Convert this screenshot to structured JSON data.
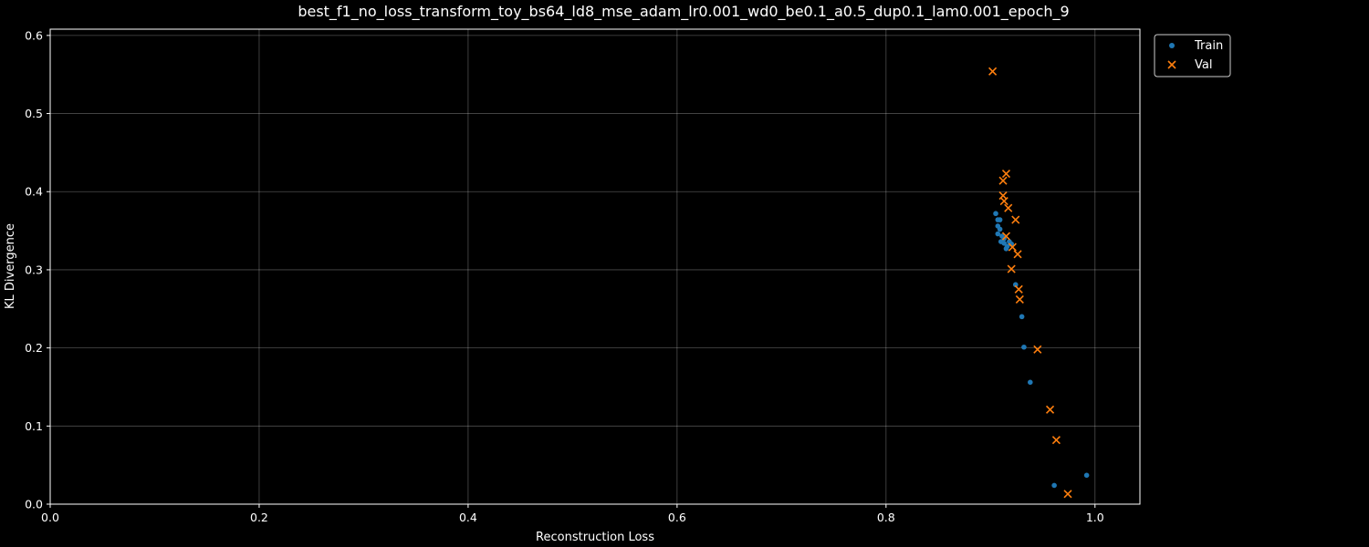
{
  "chart_data": {
    "type": "scatter",
    "title": "best_f1_no_loss_transform_toy_bs64_ld8_mse_adam_lr0.001_wd0_be0.1_a0.5_dup0.1_lam0.001_epoch_9",
    "xlabel": "Reconstruction Loss",
    "ylabel": "KL Divergence",
    "xlim": [
      0.0,
      1.043
    ],
    "ylim": [
      0.0,
      0.608
    ],
    "xticks": [
      "0.0",
      "0.2",
      "0.4",
      "0.6",
      "0.8",
      "1.0"
    ],
    "yticks": [
      "0.0",
      "0.1",
      "0.2",
      "0.3",
      "0.4",
      "0.5",
      "0.6"
    ],
    "grid": true,
    "background": "#000000",
    "legend": {
      "placement": "outside-top-right",
      "entries": [
        "Train",
        "Val"
      ]
    },
    "series": [
      {
        "name": "Train",
        "marker": "circle",
        "color": "#1f77b4",
        "points": [
          {
            "x": 0.905,
            "y": 0.372
          },
          {
            "x": 0.907,
            "y": 0.364
          },
          {
            "x": 0.909,
            "y": 0.364
          },
          {
            "x": 0.907,
            "y": 0.356
          },
          {
            "x": 0.909,
            "y": 0.352
          },
          {
            "x": 0.907,
            "y": 0.346
          },
          {
            "x": 0.911,
            "y": 0.343
          },
          {
            "x": 0.913,
            "y": 0.34
          },
          {
            "x": 0.91,
            "y": 0.336
          },
          {
            "x": 0.913,
            "y": 0.334
          },
          {
            "x": 0.916,
            "y": 0.33
          },
          {
            "x": 0.918,
            "y": 0.336
          },
          {
            "x": 0.92,
            "y": 0.333
          },
          {
            "x": 0.915,
            "y": 0.327
          },
          {
            "x": 0.924,
            "y": 0.281
          },
          {
            "x": 0.93,
            "y": 0.24
          },
          {
            "x": 0.932,
            "y": 0.201
          },
          {
            "x": 0.938,
            "y": 0.156
          },
          {
            "x": 0.961,
            "y": 0.024
          },
          {
            "x": 0.992,
            "y": 0.037
          }
        ]
      },
      {
        "name": "Val",
        "marker": "x",
        "color": "#ff7f0e",
        "points": [
          {
            "x": 0.902,
            "y": 0.554
          },
          {
            "x": 0.915,
            "y": 0.423
          },
          {
            "x": 0.912,
            "y": 0.414
          },
          {
            "x": 0.912,
            "y": 0.395
          },
          {
            "x": 0.913,
            "y": 0.388
          },
          {
            "x": 0.917,
            "y": 0.379
          },
          {
            "x": 0.924,
            "y": 0.364
          },
          {
            "x": 0.915,
            "y": 0.343
          },
          {
            "x": 0.921,
            "y": 0.329
          },
          {
            "x": 0.926,
            "y": 0.32
          },
          {
            "x": 0.92,
            "y": 0.301
          },
          {
            "x": 0.927,
            "y": 0.275
          },
          {
            "x": 0.928,
            "y": 0.262
          },
          {
            "x": 0.945,
            "y": 0.198
          },
          {
            "x": 0.957,
            "y": 0.121
          },
          {
            "x": 0.963,
            "y": 0.082
          },
          {
            "x": 0.974,
            "y": 0.013
          }
        ]
      }
    ]
  }
}
